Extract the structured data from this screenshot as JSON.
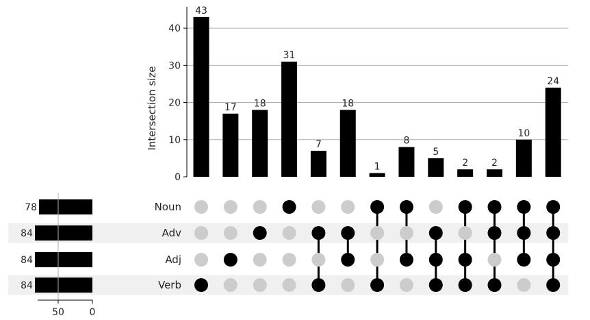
{
  "chart_data": {
    "type": "upset",
    "sets": [
      "Noun",
      "Adv",
      "Adj",
      "Verb"
    ],
    "set_sizes": [
      78,
      84,
      84,
      84
    ],
    "set_size_ticks": [
      50,
      0
    ],
    "ylabel": "Intersection size",
    "ylim": [
      0,
      45
    ],
    "yticks": [
      0,
      10,
      20,
      30,
      40
    ],
    "grid": true,
    "intersections": [
      {
        "members": [
          "Verb"
        ],
        "size": 43
      },
      {
        "members": [
          "Adj"
        ],
        "size": 17
      },
      {
        "members": [
          "Adv"
        ],
        "size": 18
      },
      {
        "members": [
          "Noun"
        ],
        "size": 31
      },
      {
        "members": [
          "Adv",
          "Verb"
        ],
        "size": 7
      },
      {
        "members": [
          "Adv",
          "Adj"
        ],
        "size": 18
      },
      {
        "members": [
          "Noun",
          "Verb"
        ],
        "size": 1
      },
      {
        "members": [
          "Noun",
          "Adj"
        ],
        "size": 8
      },
      {
        "members": [
          "Adv",
          "Adj",
          "Verb"
        ],
        "size": 5
      },
      {
        "members": [
          "Noun",
          "Adj",
          "Verb"
        ],
        "size": 2
      },
      {
        "members": [
          "Noun",
          "Adv",
          "Verb"
        ],
        "size": 2
      },
      {
        "members": [
          "Noun",
          "Adv",
          "Adj"
        ],
        "size": 10
      },
      {
        "members": [
          "Noun",
          "Adv",
          "Adj",
          "Verb"
        ],
        "size": 24
      }
    ],
    "colors": {
      "bar": "#000000",
      "dot_active": "#000000",
      "dot_inactive": "#cccccc",
      "stripe": "#f0f0f0",
      "grid": "#b0b0b0"
    }
  }
}
